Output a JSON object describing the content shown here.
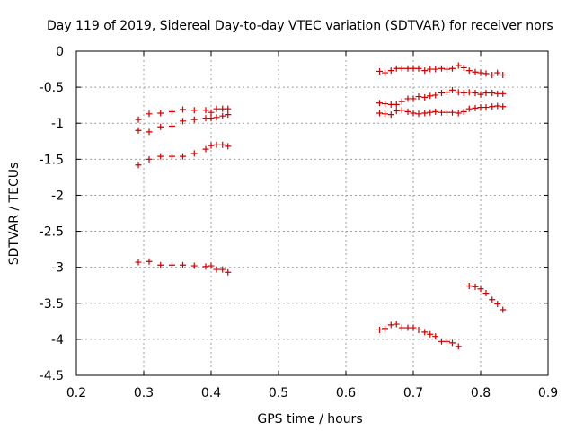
{
  "chart_data": {
    "type": "scatter",
    "title": "Day 119 of 2019, Sidereal Day-to-day VTEC variation (SDTVAR) for receiver nors",
    "xlabel": "GPS time / hours",
    "ylabel": "SDTVAR / TECUs",
    "xlim": [
      0.2,
      0.9
    ],
    "ylim": [
      -4.5,
      0
    ],
    "xticks": [
      0.2,
      0.3,
      0.4,
      0.5,
      0.6,
      0.7,
      0.8,
      0.9
    ],
    "xtick_labels": [
      "0.2",
      "0.3",
      "0.4",
      "0.5",
      "0.6",
      "0.7",
      "0.8",
      "0.9"
    ],
    "yticks": [
      0,
      -0.5,
      -1,
      -1.5,
      -2,
      -2.5,
      -3,
      -3.5,
      -4,
      -4.5
    ],
    "ytick_labels": [
      "0",
      "-0.5",
      "-1",
      "-1.5",
      "-2",
      "-2.5",
      "-3",
      "-3.5",
      "-4",
      "-4.5"
    ],
    "grid": true,
    "marker": "+",
    "color": "#cc0000",
    "series": [
      {
        "name": "s1",
        "x": [
          0.292,
          0.308,
          0.325,
          0.342,
          0.358,
          0.375,
          0.392,
          0.4,
          0.408,
          0.417,
          0.425
        ],
        "y": [
          -0.95,
          -0.87,
          -0.86,
          -0.84,
          -0.81,
          -0.82,
          -0.82,
          -0.85,
          -0.8,
          -0.8,
          -0.8
        ]
      },
      {
        "name": "s2",
        "x": [
          0.292,
          0.308,
          0.325,
          0.342,
          0.358,
          0.375,
          0.392,
          0.4,
          0.408,
          0.417,
          0.425
        ],
        "y": [
          -1.1,
          -1.12,
          -1.05,
          -1.04,
          -0.97,
          -0.95,
          -0.93,
          -0.93,
          -0.92,
          -0.9,
          -0.88
        ]
      },
      {
        "name": "s3",
        "x": [
          0.292,
          0.308,
          0.325,
          0.342,
          0.358,
          0.375,
          0.392,
          0.4,
          0.408,
          0.417,
          0.425
        ],
        "y": [
          -1.58,
          -1.5,
          -1.46,
          -1.46,
          -1.46,
          -1.42,
          -1.36,
          -1.31,
          -1.3,
          -1.3,
          -1.32
        ]
      },
      {
        "name": "s4",
        "x": [
          0.292,
          0.308,
          0.325,
          0.342,
          0.358,
          0.375,
          0.392,
          0.4,
          0.408,
          0.417,
          0.425
        ],
        "y": [
          -2.93,
          -2.92,
          -2.97,
          -2.97,
          -2.97,
          -2.98,
          -2.99,
          -2.98,
          -3.03,
          -3.03,
          -3.07
        ]
      },
      {
        "name": "s5",
        "x": [
          0.65,
          0.658,
          0.667,
          0.675,
          0.683,
          0.692,
          0.7,
          0.708,
          0.717,
          0.725,
          0.733,
          0.742,
          0.75,
          0.758,
          0.767,
          0.775,
          0.783,
          0.792,
          0.8,
          0.808,
          0.817,
          0.825,
          0.833
        ],
        "y": [
          -0.28,
          -0.3,
          -0.27,
          -0.24,
          -0.24,
          -0.24,
          -0.24,
          -0.24,
          -0.27,
          -0.25,
          -0.25,
          -0.24,
          -0.25,
          -0.24,
          -0.2,
          -0.23,
          -0.27,
          -0.29,
          -0.3,
          -0.31,
          -0.33,
          -0.3,
          -0.33
        ]
      },
      {
        "name": "s6",
        "x": [
          0.65,
          0.658,
          0.667,
          0.675,
          0.683,
          0.692,
          0.7,
          0.708,
          0.717,
          0.725,
          0.733,
          0.742,
          0.75,
          0.758,
          0.767,
          0.775,
          0.783,
          0.792,
          0.8,
          0.808,
          0.817,
          0.825,
          0.833
        ],
        "y": [
          -0.72,
          -0.73,
          -0.74,
          -0.74,
          -0.7,
          -0.66,
          -0.66,
          -0.63,
          -0.64,
          -0.62,
          -0.61,
          -0.58,
          -0.57,
          -0.54,
          -0.57,
          -0.58,
          -0.57,
          -0.58,
          -0.6,
          -0.58,
          -0.58,
          -0.59,
          -0.59
        ]
      },
      {
        "name": "s7",
        "x": [
          0.65,
          0.658,
          0.667,
          0.675,
          0.683,
          0.692,
          0.7,
          0.708,
          0.717,
          0.725,
          0.733,
          0.742,
          0.75,
          0.758,
          0.767,
          0.775,
          0.783,
          0.792,
          0.8,
          0.808,
          0.817,
          0.825,
          0.833
        ],
        "y": [
          -0.86,
          -0.87,
          -0.88,
          -0.83,
          -0.82,
          -0.84,
          -0.86,
          -0.87,
          -0.86,
          -0.85,
          -0.84,
          -0.85,
          -0.85,
          -0.85,
          -0.86,
          -0.84,
          -0.8,
          -0.79,
          -0.78,
          -0.78,
          -0.77,
          -0.76,
          -0.77
        ]
      },
      {
        "name": "s8",
        "x": [
          0.65,
          0.658,
          0.667,
          0.675,
          0.683,
          0.692,
          0.7,
          0.708,
          0.717,
          0.725,
          0.733,
          0.742,
          0.75,
          0.758,
          0.767
        ],
        "y": [
          -3.87,
          -3.85,
          -3.8,
          -3.79,
          -3.84,
          -3.84,
          -3.84,
          -3.87,
          -3.9,
          -3.93,
          -3.96,
          -4.03,
          -4.03,
          -4.05,
          -4.1
        ]
      },
      {
        "name": "s9",
        "x": [
          0.783,
          0.792,
          0.8,
          0.808,
          0.817,
          0.825,
          0.833
        ],
        "y": [
          -3.26,
          -3.27,
          -3.3,
          -3.36,
          -3.45,
          -3.51,
          -3.59
        ]
      }
    ]
  }
}
